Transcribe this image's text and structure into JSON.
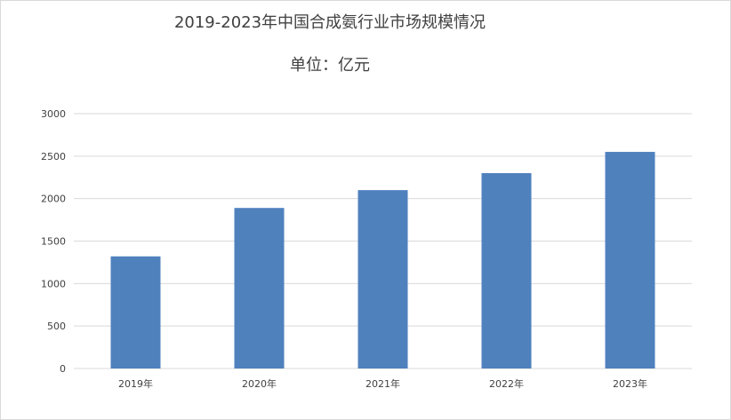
{
  "chart_data": {
    "type": "bar",
    "title": "2019-2023年中国合成氨行业市场规模情况",
    "subtitle": "单位：亿元",
    "categories": [
      "2019年",
      "2020年",
      "2021年",
      "2022年",
      "2023年"
    ],
    "series": [
      {
        "values": [
          1320,
          1890,
          2100,
          2300,
          2550
        ],
        "color": "#4f81bd"
      }
    ],
    "ylim": [
      0,
      3000
    ],
    "yticks": [
      0,
      500,
      1000,
      1500,
      2000,
      2500,
      3000
    ],
    "grid": true,
    "legend": "none",
    "gridline_color": "#d9d9d9"
  }
}
